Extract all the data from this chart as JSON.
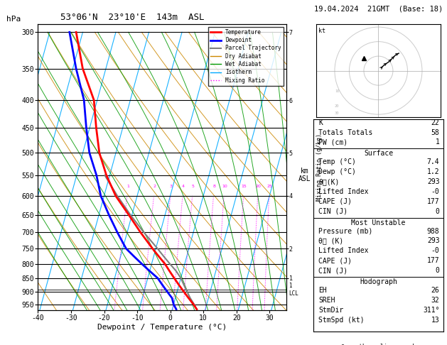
{
  "title_left": "53°06'N  23°10'E  143m  ASL",
  "title_right": "19.04.2024  21GMT  (Base: 18)",
  "xlabel": "Dewpoint / Temperature (°C)",
  "pressure_levels": [
    300,
    350,
    400,
    450,
    500,
    550,
    600,
    650,
    700,
    750,
    800,
    850,
    900,
    950
  ],
  "xlim": [
    -40,
    35
  ],
  "temp_pressure": [
    970,
    950,
    925,
    900,
    875,
    850,
    825,
    800,
    775,
    750,
    700,
    650,
    600,
    550,
    500,
    450,
    400,
    350,
    300
  ],
  "temp_vals": [
    7.4,
    6.0,
    4.0,
    2.0,
    0.0,
    -2.0,
    -4.0,
    -6.0,
    -8.5,
    -11.0,
    -16.0,
    -21.0,
    -26.5,
    -31.0,
    -35.0,
    -38.0,
    -41.0,
    -47.0,
    -52.0
  ],
  "dewp_pressure": [
    970,
    950,
    925,
    900,
    875,
    850,
    825,
    800,
    775,
    750,
    700,
    650,
    600,
    550,
    500,
    450,
    400,
    350,
    300
  ],
  "dewp_vals": [
    1.2,
    0.0,
    -1.0,
    -3.0,
    -5.0,
    -7.0,
    -10.0,
    -13.0,
    -16.0,
    -19.0,
    -23.0,
    -27.0,
    -31.0,
    -34.0,
    -38.0,
    -41.0,
    -44.0,
    -49.0,
    -54.0
  ],
  "parcel_pressure": [
    970,
    950,
    925,
    900,
    875,
    850,
    825,
    800,
    775,
    750,
    700,
    650,
    600,
    550
  ],
  "parcel_vals": [
    7.4,
    6.2,
    4.5,
    3.0,
    1.5,
    0.0,
    -2.0,
    -4.5,
    -7.0,
    -9.5,
    -15.0,
    -20.5,
    -26.0,
    -31.5
  ],
  "lcl_pressure": 893,
  "temp_color": "#ff0000",
  "dewp_color": "#0000ff",
  "parcel_color": "#808080",
  "dry_adiabat_color": "#cc8800",
  "wet_adiabat_color": "#009900",
  "isotherm_color": "#00aaff",
  "mixing_ratio_color": "#ff00ff",
  "mixing_ratio_values": [
    1,
    2,
    3,
    4,
    5,
    8,
    10,
    15,
    20,
    25
  ],
  "K": 22,
  "TT": 58,
  "PW": 1,
  "surface_temp": 7.4,
  "surface_dewp": 1.2,
  "surface_theta_e": 293,
  "lifted_index": "-0",
  "cape": 177,
  "cin": 0,
  "mu_pressure": 988,
  "mu_theta_e": 293,
  "mu_lifted_index": "-0",
  "mu_cape": 177,
  "mu_cin": 0,
  "EH": 26,
  "SREH": 32,
  "StmDir": 311,
  "StmSpd": 13
}
